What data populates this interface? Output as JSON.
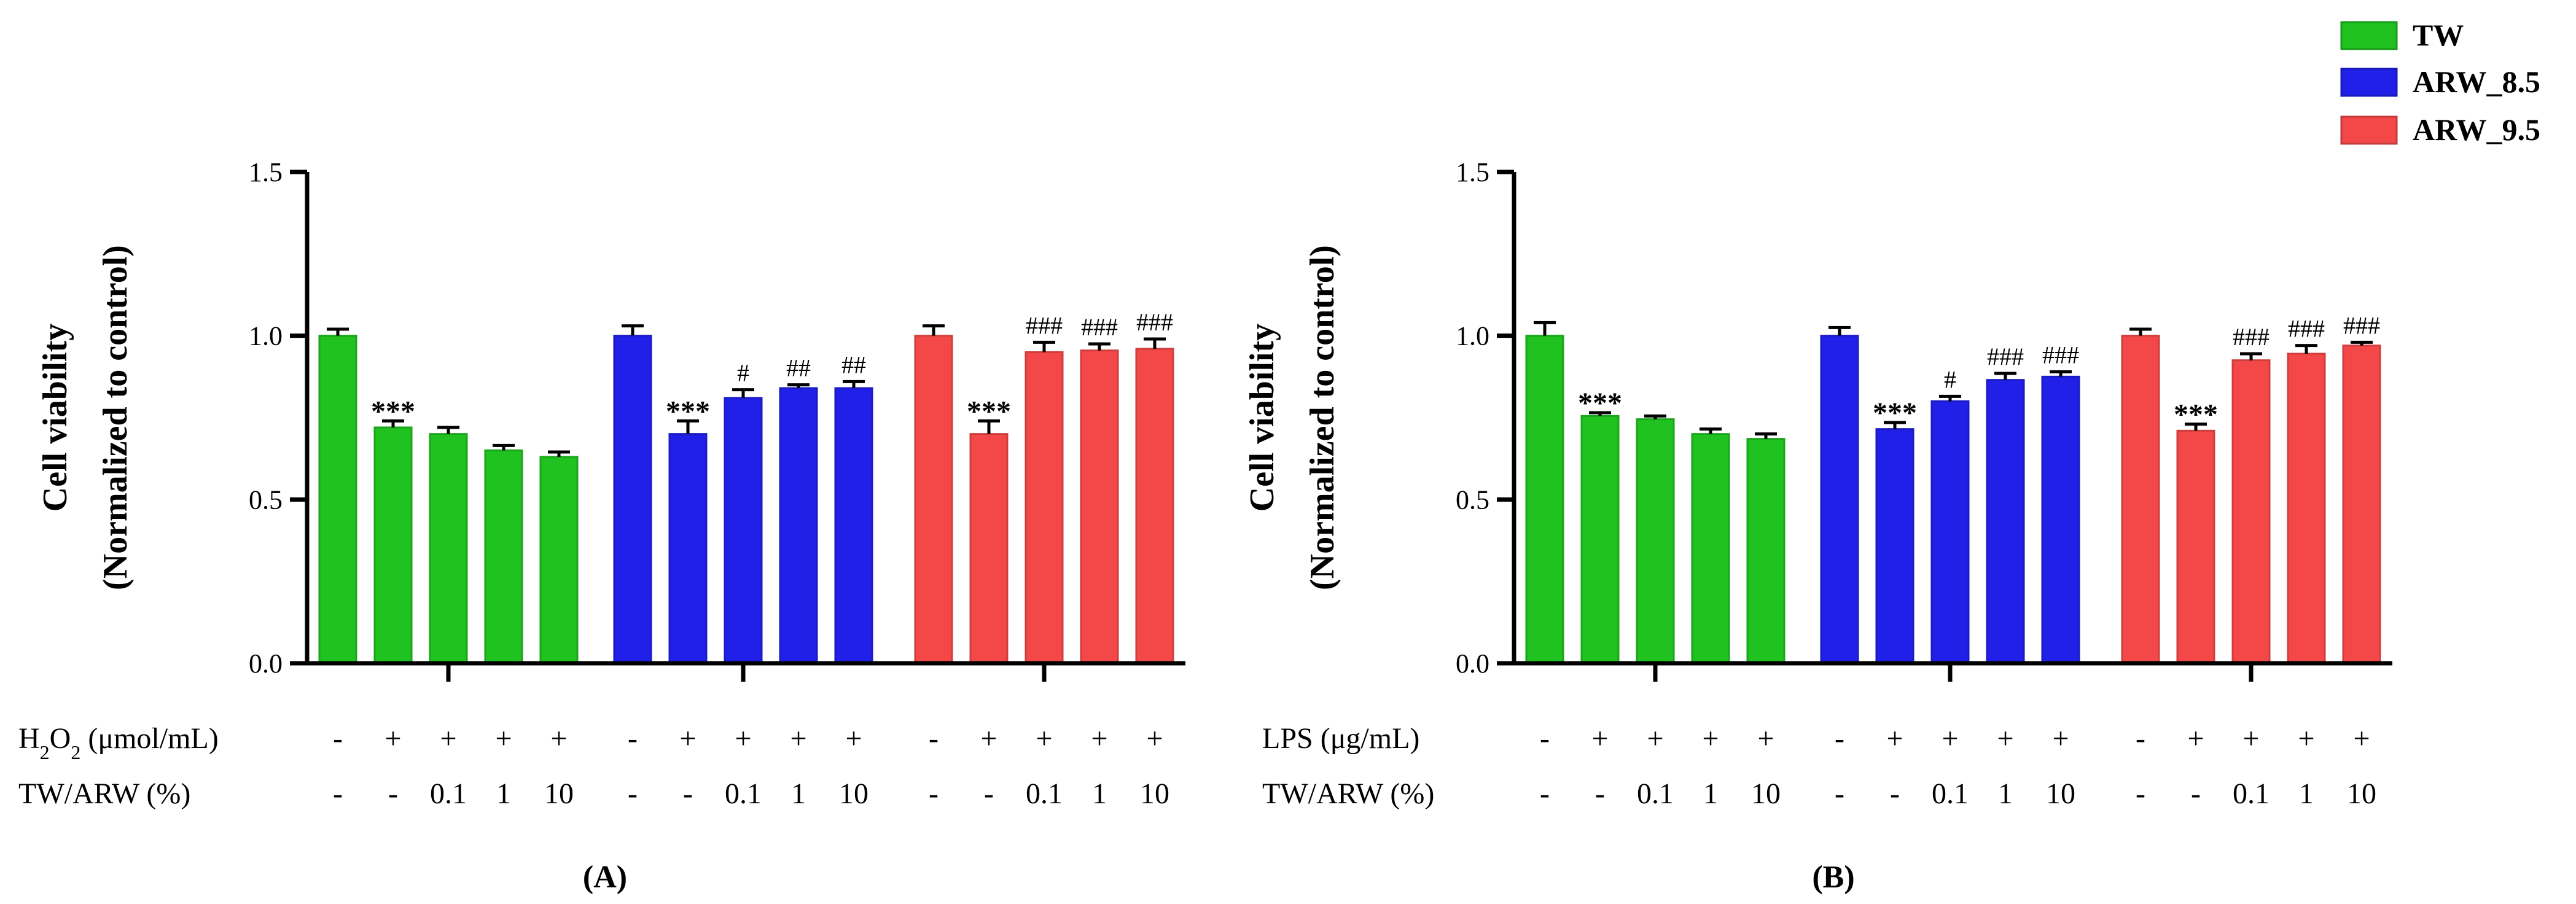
{
  "legend": {
    "items": [
      {
        "label": "TW",
        "color": "#1fc21f",
        "key": "TW"
      },
      {
        "label": "ARW_8.5",
        "color": "#2020e8",
        "key": "ARW_8.5"
      },
      {
        "label": "ARW_9.5",
        "color": "#f44848",
        "key": "ARW_9.5"
      }
    ]
  },
  "chart_data": [
    {
      "type": "bar",
      "panel_label": "(A)",
      "ylabel": [
        "Cell viability",
        "(Normalized to control)"
      ],
      "ylim": [
        0,
        1.5
      ],
      "yticks": [
        "0.0",
        "0.5",
        "1.0",
        "1.5"
      ],
      "treatment_row_label": "H2O2 (μmol/mL)",
      "treatment_row_label_parts": {
        "pre": "H",
        "sub": "2",
        "mid": "O",
        "sub2": "2",
        "post": " (μmol/mL)"
      },
      "dose_row_label": "TW/ARW (%)",
      "treatment_marks": [
        "-",
        "+",
        "+",
        "+",
        "+"
      ],
      "dose_marks": [
        "-",
        "-",
        "0.1",
        "1",
        "10"
      ],
      "groups": [
        {
          "name": "TW",
          "color": "#1fc21f",
          "values": [
            1.0,
            0.72,
            0.7,
            0.65,
            0.63
          ],
          "errors": [
            0.02,
            0.02,
            0.02,
            0.015,
            0.015
          ],
          "annotations": [
            "",
            "***",
            "",
            "",
            ""
          ]
        },
        {
          "name": "ARW_8.5",
          "color": "#2020e8",
          "values": [
            1.0,
            0.7,
            0.81,
            0.84,
            0.84
          ],
          "errors": [
            0.03,
            0.04,
            0.025,
            0.01,
            0.02
          ],
          "annotations": [
            "",
            "***",
            "#",
            "##",
            "##"
          ]
        },
        {
          "name": "ARW_9.5",
          "color": "#f44848",
          "values": [
            1.0,
            0.7,
            0.95,
            0.955,
            0.96
          ],
          "errors": [
            0.03,
            0.04,
            0.03,
            0.02,
            0.03
          ],
          "annotations": [
            "",
            "***",
            "###",
            "###",
            "###"
          ]
        }
      ]
    },
    {
      "type": "bar",
      "panel_label": "(B)",
      "ylabel": [
        "Cell viability",
        "(Normalized to control)"
      ],
      "ylim": [
        0,
        1.5
      ],
      "yticks": [
        "0.0",
        "0.5",
        "1.0",
        "1.5"
      ],
      "treatment_row_label": "LPS (μg/mL)",
      "dose_row_label": "TW/ARW (%)",
      "treatment_marks": [
        "-",
        "+",
        "+",
        "+",
        "+"
      ],
      "dose_marks": [
        "-",
        "-",
        "0.1",
        "1",
        "10"
      ],
      "groups": [
        {
          "name": "TW",
          "color": "#1fc21f",
          "values": [
            1.0,
            0.755,
            0.745,
            0.7,
            0.685
          ],
          "errors": [
            0.04,
            0.01,
            0.01,
            0.015,
            0.015
          ],
          "annotations": [
            "",
            "***",
            "",
            "",
            ""
          ]
        },
        {
          "name": "ARW_8.5",
          "color": "#2020e8",
          "values": [
            1.0,
            0.715,
            0.8,
            0.865,
            0.875
          ],
          "errors": [
            0.025,
            0.02,
            0.015,
            0.02,
            0.015
          ],
          "annotations": [
            "",
            "***",
            "#",
            "###",
            "###"
          ]
        },
        {
          "name": "ARW_9.5",
          "color": "#f44848",
          "values": [
            1.0,
            0.71,
            0.925,
            0.945,
            0.97
          ],
          "errors": [
            0.02,
            0.02,
            0.02,
            0.025,
            0.01
          ],
          "annotations": [
            "",
            "***",
            "###",
            "###",
            "###"
          ]
        }
      ]
    }
  ]
}
